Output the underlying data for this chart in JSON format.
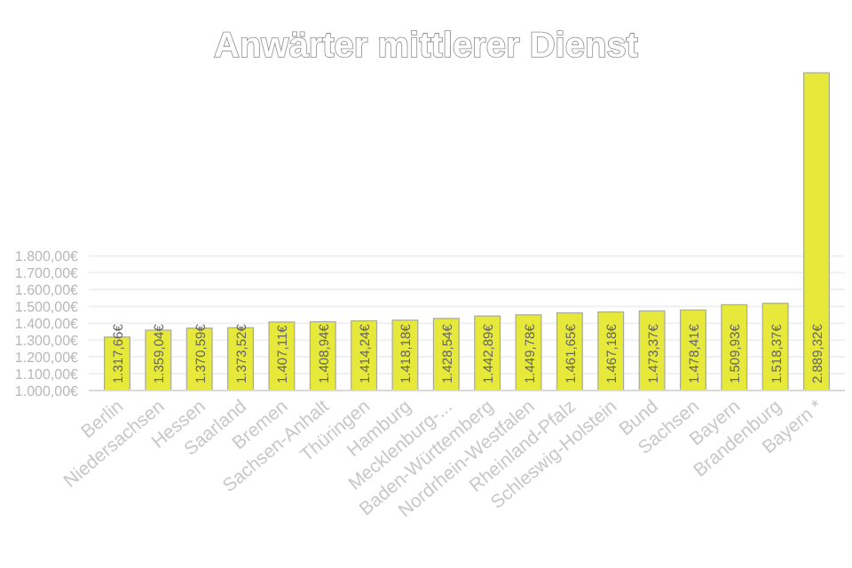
{
  "chart_data": {
    "type": "bar",
    "title": "Anwärter mittlerer Dienst",
    "categories": [
      "Berlin",
      "Niedersachsen",
      "Hessen",
      "Saarland",
      "Bremen",
      "Sachsen-Anhalt",
      "Thüringen",
      "Hamburg",
      "Mecklenburg-...",
      "Baden-Württemberg",
      "Nordrhein-Westfalen",
      "Rheinland-Pfalz",
      "Schleswig-Holstein",
      "Bund",
      "Sachsen",
      "Bayern",
      "Brandenburg",
      "Bayern *"
    ],
    "values": [
      1317.66,
      1359.04,
      1370.59,
      1373.52,
      1407.11,
      1408.94,
      1414.24,
      1418.18,
      1428.54,
      1442.89,
      1449.78,
      1461.65,
      1467.18,
      1473.37,
      1478.41,
      1509.93,
      1518.37,
      2889.32
    ],
    "value_labels": [
      "1.317,66€",
      "1.359,04€",
      "1.370,59€",
      "1.373,52€",
      "1.407,11€",
      "1.408,94€",
      "1.414,24€",
      "1.418,18€",
      "1.428,54€",
      "1.442,89€",
      "1.449,78€",
      "1.461,65€",
      "1.467,18€",
      "1.473,37€",
      "1.478,41€",
      "1.509,93€",
      "1.518,37€",
      "2.889,32€"
    ],
    "color": "#e6e83a",
    "ylim": [
      1000,
      2900
    ],
    "yticks": [
      {
        "value": 1000,
        "label": "1.000,00€"
      },
      {
        "value": 1100,
        "label": "1.100,00€"
      },
      {
        "value": 1200,
        "label": "1.200,00€"
      },
      {
        "value": 1300,
        "label": "1.300,00€"
      },
      {
        "value": 1400,
        "label": "1.400,00€"
      },
      {
        "value": 1500,
        "label": "1.500,00€"
      },
      {
        "value": 1600,
        "label": "1.600,00€"
      },
      {
        "value": 1700,
        "label": "1.700,00€"
      },
      {
        "value": 1800,
        "label": "1.800,00€"
      }
    ],
    "grid": "y"
  }
}
